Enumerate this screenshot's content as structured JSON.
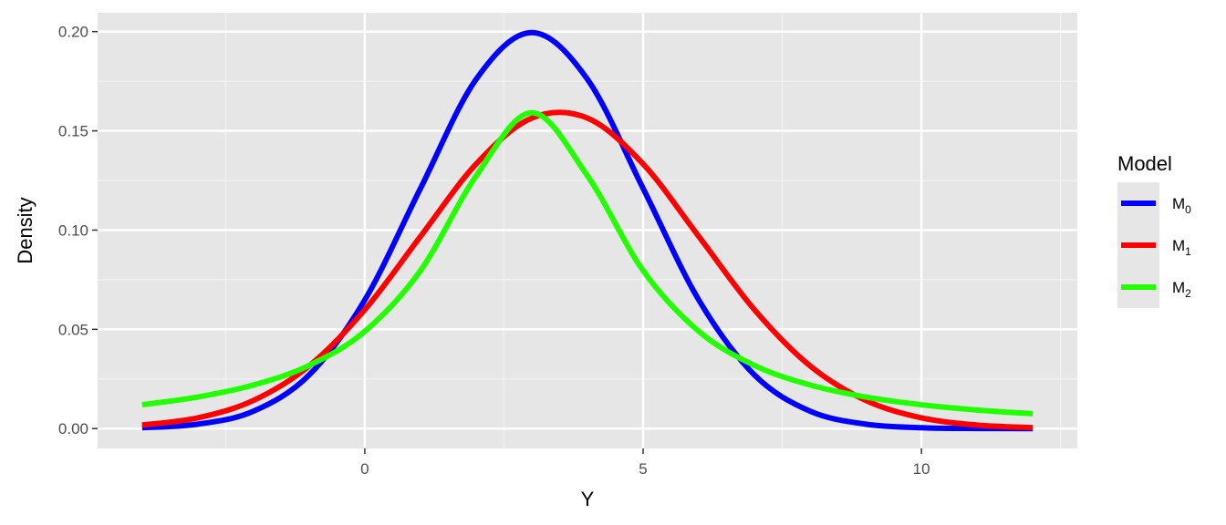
{
  "chart_data": {
    "type": "line",
    "title": "",
    "xlabel": "Y",
    "ylabel": "Density",
    "xlim": [
      -4.8,
      12.8
    ],
    "ylim": [
      -0.01,
      0.2095
    ],
    "x_ticks": [
      0,
      5,
      10
    ],
    "x_tick_labels": [
      "0",
      "5",
      "10"
    ],
    "y_ticks": [
      0,
      0.05,
      0.1,
      0.15,
      0.2
    ],
    "y_tick_labels": [
      "0.00",
      "0.05",
      "0.10",
      "0.15",
      "0.20"
    ],
    "grid": true,
    "legend": {
      "title": "Model",
      "placement": "right"
    },
    "x": [
      -4,
      -3,
      -2,
      -1,
      0,
      1,
      2,
      3,
      4,
      5,
      6,
      7,
      8,
      9,
      10,
      11,
      12
    ],
    "series": [
      {
        "name": "M",
        "subscript": "0",
        "color": "#0000FF",
        "values": [
          0.00044,
          0.00222,
          0.00876,
          0.027,
          0.0648,
          0.121,
          0.176,
          0.1995,
          0.176,
          0.121,
          0.0648,
          0.027,
          0.00876,
          0.00222,
          0.00044,
          7e-05,
          1e-05
        ]
      },
      {
        "name": "M",
        "subscript": "1",
        "color": "#FF0000",
        "values": [
          0.00177,
          0.00543,
          0.01419,
          0.03158,
          0.05989,
          0.09679,
          0.13329,
          0.15642,
          0.15642,
          0.13329,
          0.09679,
          0.05989,
          0.03158,
          0.01419,
          0.00543,
          0.00177,
          0.00049
        ]
      },
      {
        "name": "M",
        "subscript": "2",
        "color": "#22FF00",
        "values": [
          0.01201,
          0.01592,
          0.02195,
          0.03183,
          0.04897,
          0.07958,
          0.12732,
          0.15915,
          0.12732,
          0.07958,
          0.04897,
          0.03183,
          0.02195,
          0.01592,
          0.01201,
          0.00936,
          0.00749
        ]
      }
    ]
  }
}
